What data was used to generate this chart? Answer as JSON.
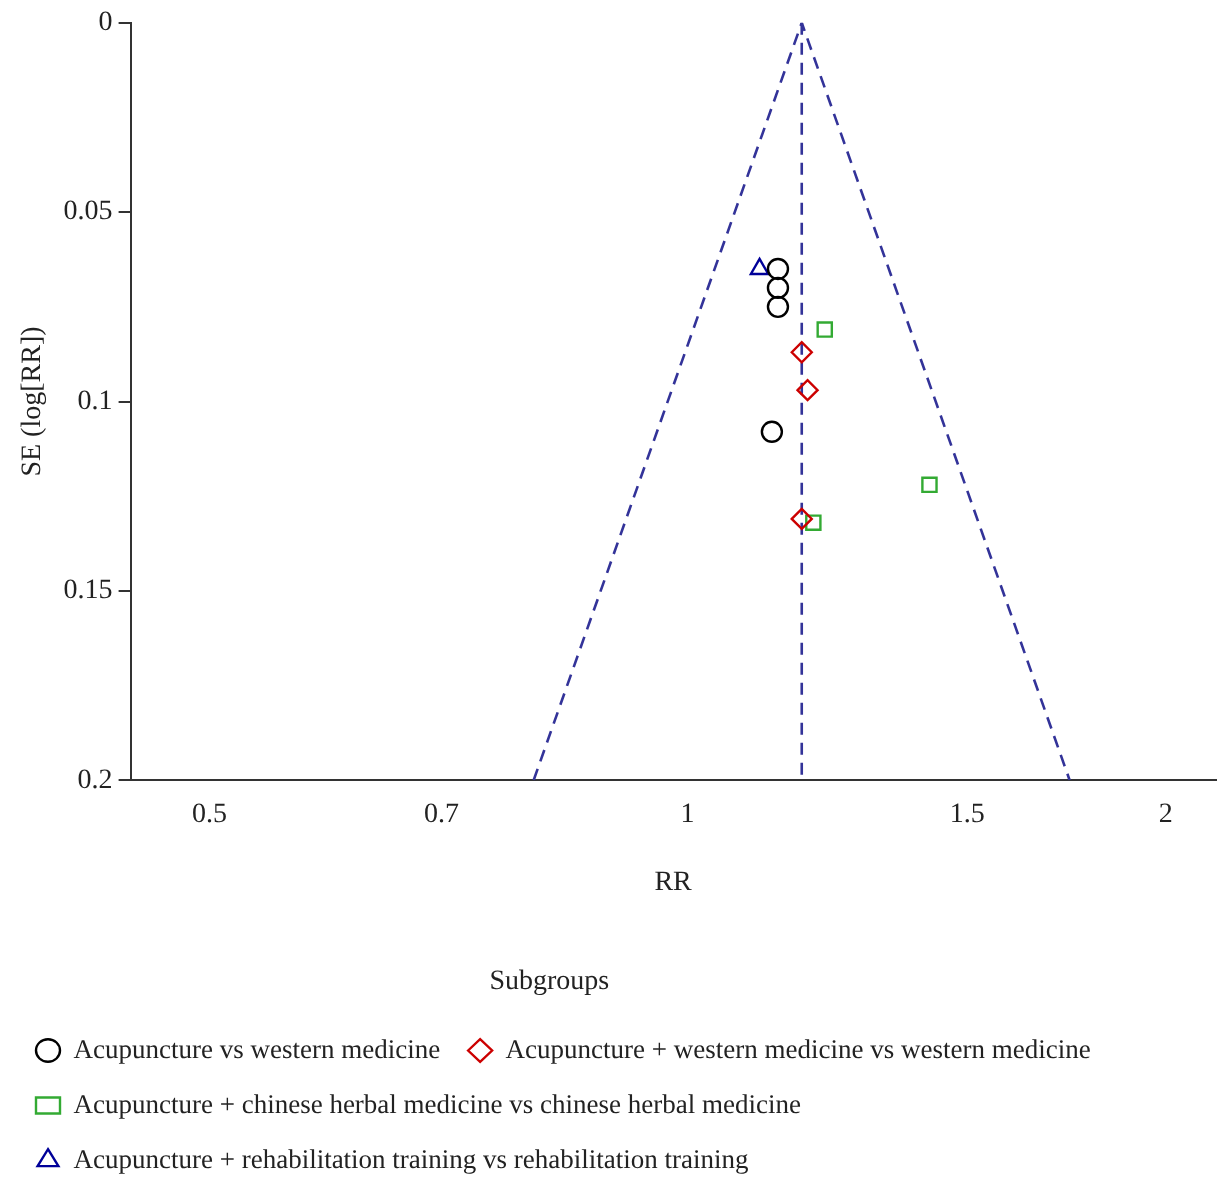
{
  "chart_data": {
    "type": "scatter",
    "xlabel": "RR",
    "ylabel": "SE (log[RR])",
    "legend_title": "Subgroups",
    "legend": "bottom",
    "log": "x",
    "grid": false,
    "xlim": [
      0.446,
      2.15
    ],
    "xticks": [
      0.5,
      0.7,
      1,
      1.5,
      2
    ],
    "ylim": [
      0.2,
      0
    ],
    "yticks": [
      0,
      0.05,
      0.1,
      0.15,
      0.2
    ],
    "series": [
      {
        "name": "Acupuncture vs western medicine",
        "color": "#000000",
        "marker": "circle",
        "x": [
          1.14,
          1.14,
          1.14,
          1.13
        ],
        "values": [
          0.065,
          0.07,
          0.075,
          0.108
        ]
      },
      {
        "name": "Acupuncture + western medicine vs western medicine",
        "color": "#cc0000",
        "marker": "diamond",
        "x": [
          1.18,
          1.19,
          1.18
        ],
        "values": [
          0.087,
          0.097,
          0.131
        ]
      },
      {
        "name": "Acupuncture + chinese herbal medicine vs chinese herbal medicine",
        "color": "#33aa33",
        "marker": "square",
        "x": [
          1.22,
          1.42,
          1.2
        ],
        "values": [
          0.081,
          0.122,
          0.132
        ]
      },
      {
        "name": "Acupuncture + rehabilitation training vs rehabilitation training",
        "color": "#000099",
        "marker": "triangle",
        "x": [
          1.11
        ],
        "values": [
          0.065
        ]
      },
      {
        "type": "line",
        "color": "#333399",
        "line_style": "dashed",
        "marker": "none",
        "x": [
          0.8,
          1.18,
          1.74
        ],
        "values": [
          0.2,
          0,
          0.2
        ]
      },
      {
        "type": "line",
        "color": "#333399",
        "line_style": "dashed",
        "marker": "none",
        "x": [
          1.18,
          1.18
        ],
        "values": [
          0,
          0.2
        ]
      }
    ]
  }
}
